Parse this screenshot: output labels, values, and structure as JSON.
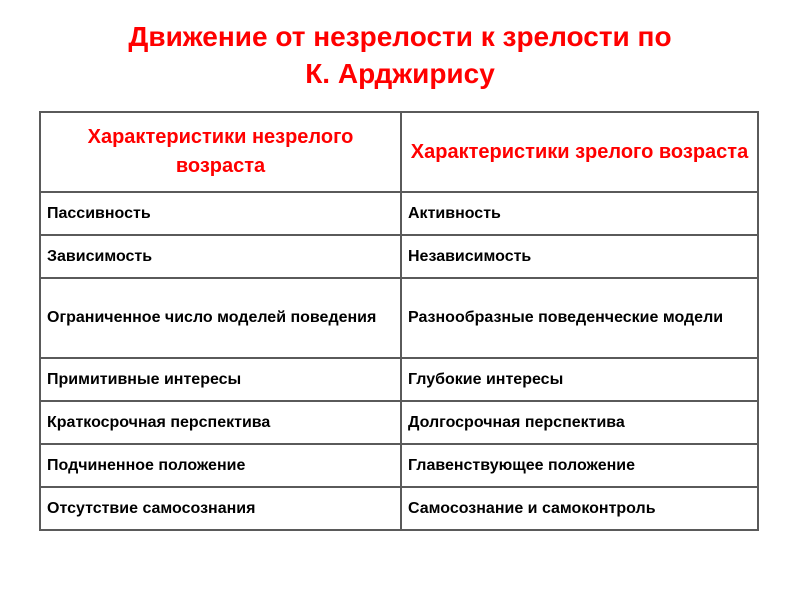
{
  "title": {
    "line1": "Движение от незрелости к зрелости по",
    "line2": "К. Арджирису"
  },
  "colors": {
    "title": "#ff0000",
    "header_text": "#ff0000",
    "border": "#5a5a5a"
  },
  "table": {
    "headers": [
      "Характеристики незрелого возраста",
      "Характеристики зрелого возраста"
    ],
    "rows": [
      [
        "Пассивность",
        "Активность"
      ],
      [
        "Зависимость",
        "Независимость"
      ],
      [
        "Ограниченное число моделей поведения",
        "Разнообразные поведенческие модели"
      ],
      [
        "Примитивные интересы",
        "Глубокие интересы"
      ],
      [
        "Краткосрочная перспектива",
        "Долгосрочная перспектива"
      ],
      [
        "Подчиненное положение",
        "Главенствующее положение"
      ],
      [
        "Отсутствие самосознания",
        "Самосознание и самоконтроль"
      ]
    ]
  }
}
